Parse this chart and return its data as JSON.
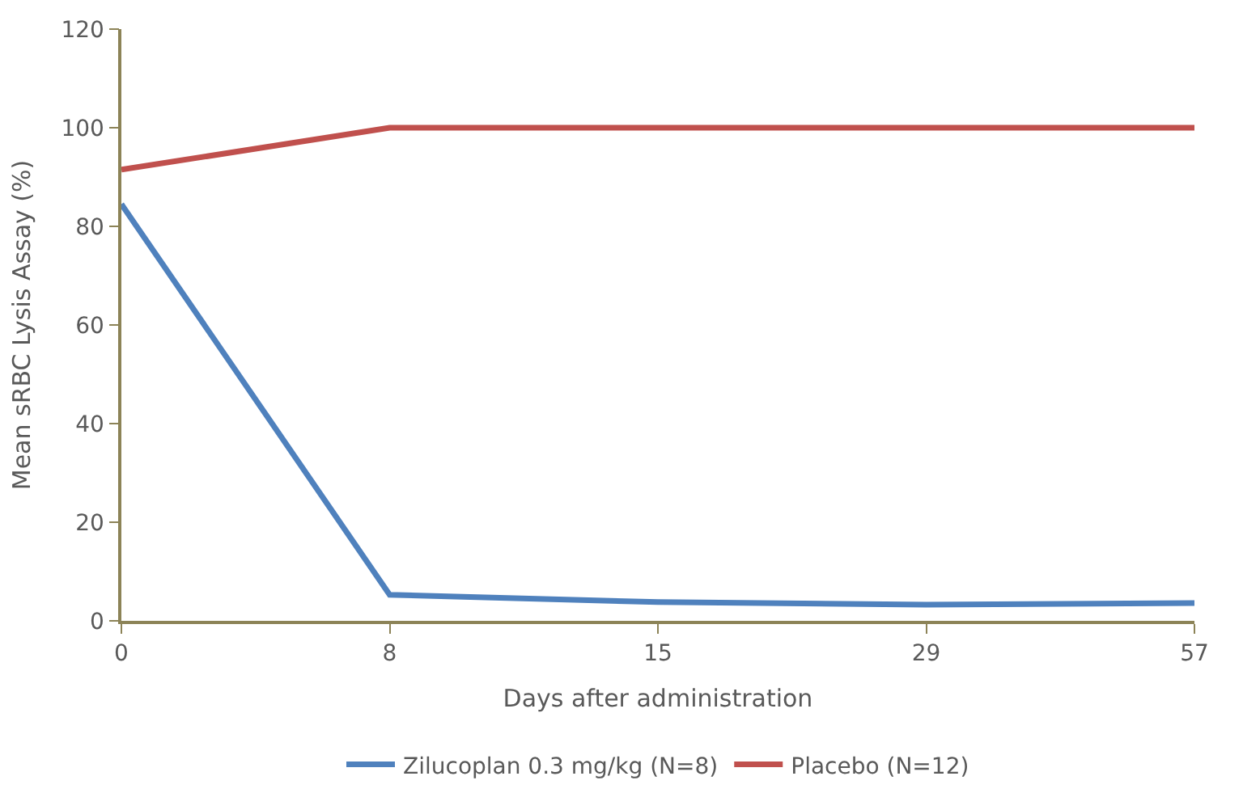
{
  "chart_data": {
    "type": "line",
    "xlabel": "Days after administration",
    "ylabel": "Mean sRBC Lysis Assay (%)",
    "categories": [
      "0",
      "8",
      "15",
      "29",
      "57"
    ],
    "series": [
      {
        "name": "Zilucoplan 0.3 mg/kg (N=8)",
        "color": "#4f81bd",
        "values": [
          84.5,
          5.3,
          3.8,
          3.3,
          3.6
        ]
      },
      {
        "name": "Placebo (N=12)",
        "color": "#c0504d",
        "values": [
          91.5,
          100,
          100,
          100,
          100
        ]
      }
    ],
    "ylim": [
      0,
      120
    ],
    "yticks": [
      0,
      20,
      40,
      60,
      80,
      100,
      120
    ],
    "legend": "bottom",
    "marker": "none",
    "line_style": "solid"
  }
}
